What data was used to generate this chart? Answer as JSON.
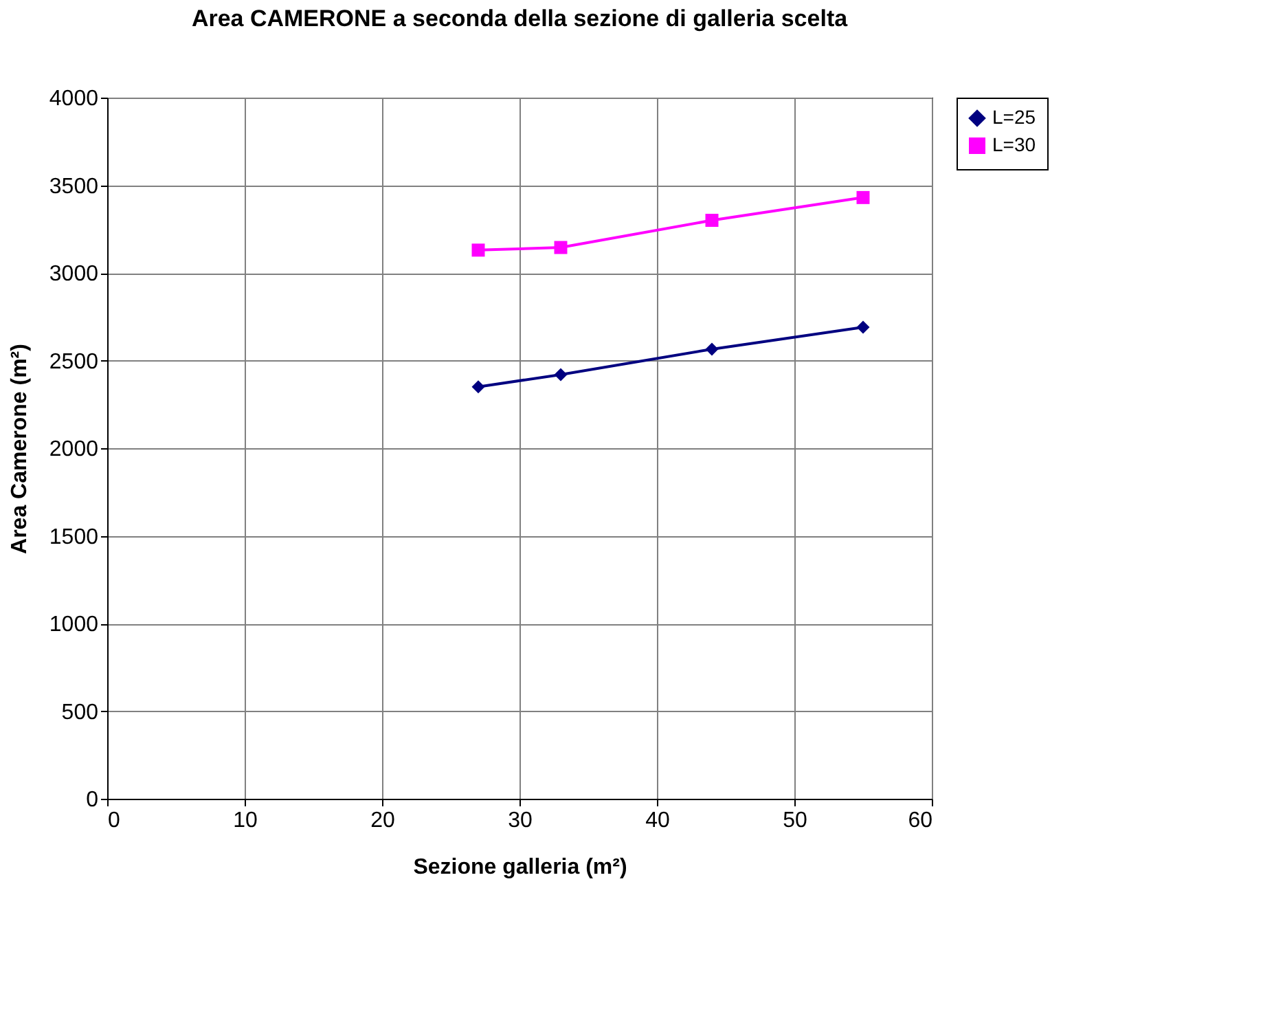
{
  "chart_data": {
    "type": "line",
    "title": "Area CAMERONE a seconda della sezione di galleria scelta",
    "xlabel": "Sezione galleria (m²)",
    "ylabel": "Area Camerone (m²)",
    "x": [
      27,
      33,
      44,
      55
    ],
    "series": [
      {
        "name": "L=25",
        "color": "#000080",
        "marker": "diamond",
        "values": [
          2350,
          2420,
          2565,
          2690
        ]
      },
      {
        "name": "L=30",
        "color": "#ff00ff",
        "marker": "square",
        "values": [
          3130,
          3145,
          3300,
          3430
        ]
      }
    ],
    "xlim": [
      0,
      60
    ],
    "xticks": [
      0,
      10,
      20,
      30,
      40,
      50,
      60
    ],
    "ylim": [
      0,
      4000
    ],
    "yticks": [
      0,
      500,
      1000,
      1500,
      2000,
      2500,
      3000,
      3500,
      4000
    ],
    "grid": true,
    "legend": "right",
    "line_style": "solid"
  }
}
